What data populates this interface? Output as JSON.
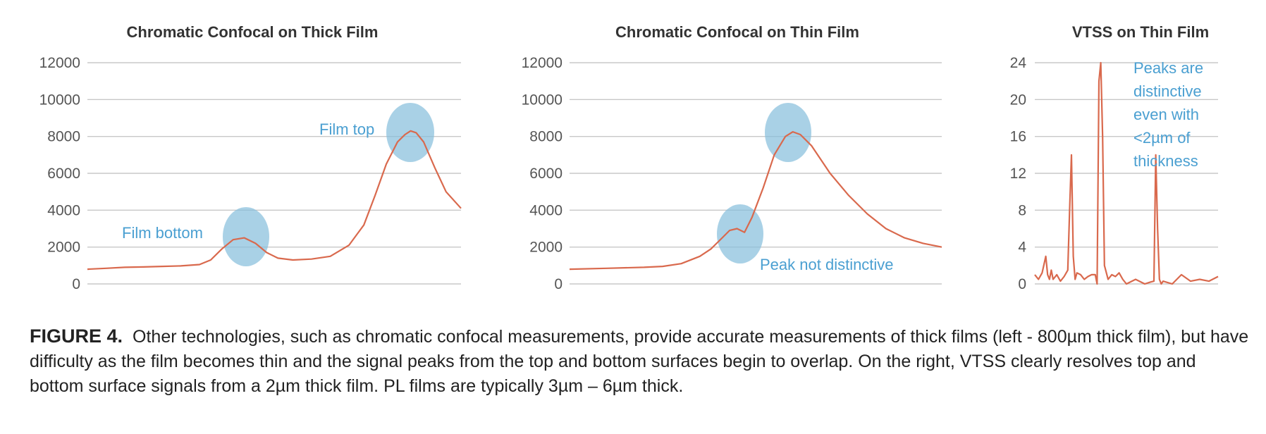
{
  "chart_data": [
    {
      "type": "line",
      "title": "Chromatic Confocal on Thick Film",
      "xlabel": "",
      "ylabel": "",
      "ylim": [
        0,
        12000
      ],
      "yticks": [
        "0",
        "2000",
        "4000",
        "6000",
        "8000",
        "10000",
        "12000"
      ],
      "grid": true,
      "series": [
        {
          "x": [
            0,
            5,
            10,
            15,
            20,
            25,
            30,
            33,
            36,
            39,
            42,
            45,
            48,
            51,
            55,
            60,
            65,
            70,
            74,
            77,
            80,
            83,
            85,
            86.5,
            88,
            90,
            93,
            96,
            100
          ],
          "values": [
            800,
            850,
            900,
            920,
            950,
            980,
            1050,
            1300,
            1900,
            2400,
            2500,
            2200,
            1700,
            1400,
            1300,
            1350,
            1500,
            2100,
            3200,
            4800,
            6500,
            7700,
            8100,
            8300,
            8200,
            7700,
            6300,
            5000,
            4100
          ]
        }
      ],
      "annotations": [
        "Film top",
        "Film bottom"
      ]
    },
    {
      "type": "line",
      "title": "Chromatic Confocal on Thin Film",
      "xlabel": "",
      "ylabel": "",
      "ylim": [
        0,
        12000
      ],
      "yticks": [
        "0",
        "2000",
        "4000",
        "6000",
        "8000",
        "10000",
        "12000"
      ],
      "grid": true,
      "series": [
        {
          "x": [
            0,
            10,
            20,
            25,
            30,
            35,
            38,
            41,
            43,
            45,
            47,
            49,
            52,
            55,
            58,
            60,
            62,
            65,
            70,
            75,
            80,
            85,
            90,
            95,
            100
          ],
          "values": [
            800,
            850,
            900,
            950,
            1100,
            1500,
            1900,
            2500,
            2900,
            3000,
            2800,
            3600,
            5200,
            7000,
            8000,
            8250,
            8100,
            7500,
            6000,
            4800,
            3800,
            3000,
            2500,
            2200,
            2000
          ]
        }
      ],
      "annotations": [
        "Peak not distinctive"
      ]
    },
    {
      "type": "line",
      "title": "VTSS on Thin Film",
      "xlabel": "",
      "ylabel": "",
      "ylim": [
        0,
        24
      ],
      "yticks": [
        "0",
        "4",
        "8",
        "12",
        "16",
        "20",
        "24"
      ],
      "grid": true,
      "series": [
        {
          "x": [
            0,
            2,
            4,
            6,
            7,
            8,
            9,
            10,
            12,
            14,
            16,
            18,
            19,
            20,
            21,
            22,
            23,
            25,
            27,
            29,
            31,
            33,
            34,
            35,
            36,
            37,
            38,
            40,
            42,
            44,
            46,
            48,
            50,
            55,
            60,
            63,
            65,
            66,
            67,
            68,
            69,
            70,
            75,
            80,
            85,
            90,
            95,
            100
          ],
          "values": [
            1,
            0.5,
            1.2,
            3,
            1,
            0.5,
            1.5,
            0.5,
            1,
            0.3,
            0.8,
            1.5,
            8,
            14,
            3,
            0.5,
            1.2,
            1,
            0.5,
            0.8,
            1,
            1,
            0,
            22,
            24,
            16,
            2,
            0.5,
            1,
            0.8,
            1.2,
            0.5,
            0,
            0.5,
            0,
            0.2,
            0.3,
            14,
            6,
            0.5,
            0,
            0.3,
            0,
            1,
            0.3,
            0.5,
            0.3,
            0.8
          ]
        }
      ],
      "annotations": [
        "Peaks are",
        "distinctive",
        "even with",
        "<2µm of",
        "thickness"
      ]
    }
  ],
  "caption": {
    "label": "FIGURE 4.",
    "text": "Other technologies, such as chromatic confocal measurements, provide accurate measurements of thick films (left - 800µm thick film), but have difficulty as the film becomes thin and the signal peaks from the top and bottom surfaces begin to overlap. On the right, VTSS clearly resolves top and bottom surface signals from a 2µm thick film. PL films are typically 3µm – 6µm thick."
  }
}
